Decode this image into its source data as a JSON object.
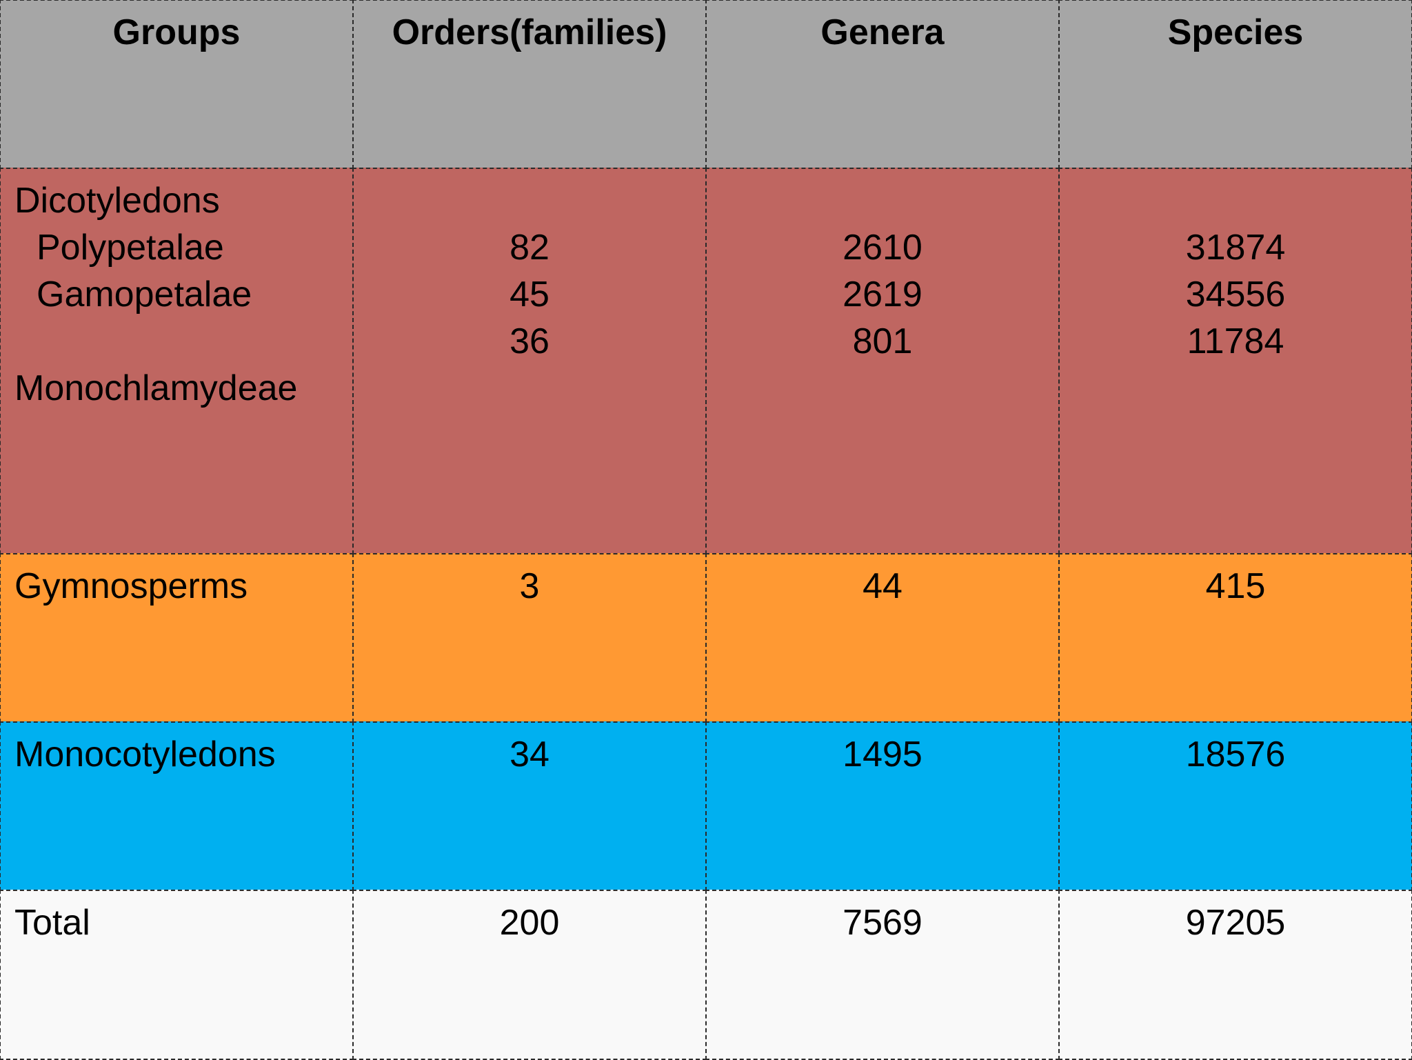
{
  "headers": [
    "Groups",
    "Orders(families)",
    "Genera",
    "Species"
  ],
  "dicotyledons": {
    "label": "Dicotyledons",
    "subgroups": [
      "Polypetalae",
      "Gamopetalae",
      "Monochlamydeae"
    ],
    "orders": [
      "82",
      "45",
      "36"
    ],
    "genera": [
      "2610",
      "2619",
      "801"
    ],
    "species": [
      "31874",
      "34556",
      "11784"
    ]
  },
  "gymnosperms": {
    "label": "Gymnosperms",
    "orders": "3",
    "genera": "44",
    "species": "415"
  },
  "monocotyledons": {
    "label": "Monocotyledons",
    "orders": "34",
    "genera": "1495",
    "species": "18576"
  },
  "total": {
    "label": "Total",
    "orders": "200",
    "genera": "7569",
    "species": "97205"
  },
  "colors": {
    "header": "#a6a6a6",
    "dicotyledons": "#bf6661",
    "gymnosperms": "#ff9933",
    "monocotyledons": "#00b0f0",
    "total": "#f9f9f9"
  }
}
